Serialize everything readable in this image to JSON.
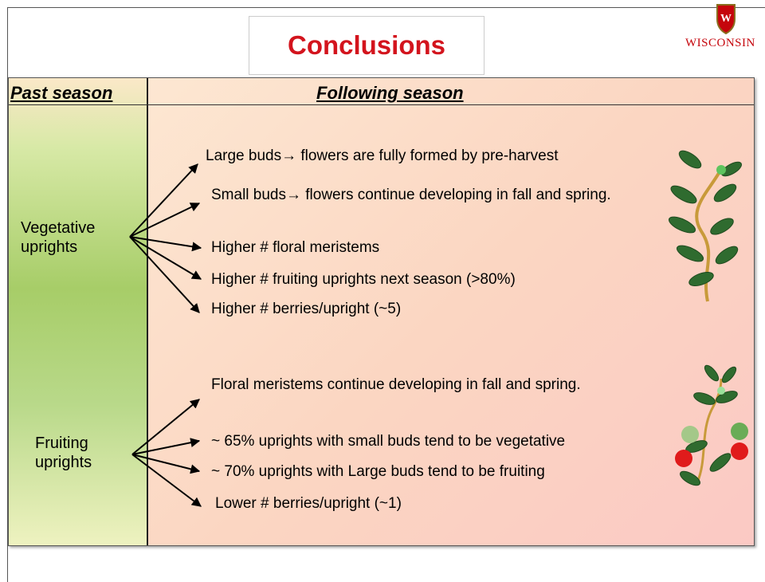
{
  "header": {
    "title": "Conclusions",
    "logo": "WISCONSIN"
  },
  "table": {
    "headers": [
      "Past season",
      "Following season"
    ],
    "groups": [
      {
        "label": "Vegetative uprights",
        "items": [
          "Large buds→ flowers are fully formed by pre-harvest",
          "Small buds→ flowers continue developing in fall and spring.",
          "Higher  # floral meristems",
          "Higher  # fruiting uprights next season (>80%)",
          "Higher  # berries/upright (~5)"
        ]
      },
      {
        "label": "Fruiting uprights",
        "items": [
          "Floral meristems continue developing in fall and spring.",
          "~ 65% uprights with small buds tend to be vegetative",
          "~ 70% uprights with Large buds tend to be fruiting",
          "Lower # berries/upright (~1)"
        ]
      }
    ]
  }
}
